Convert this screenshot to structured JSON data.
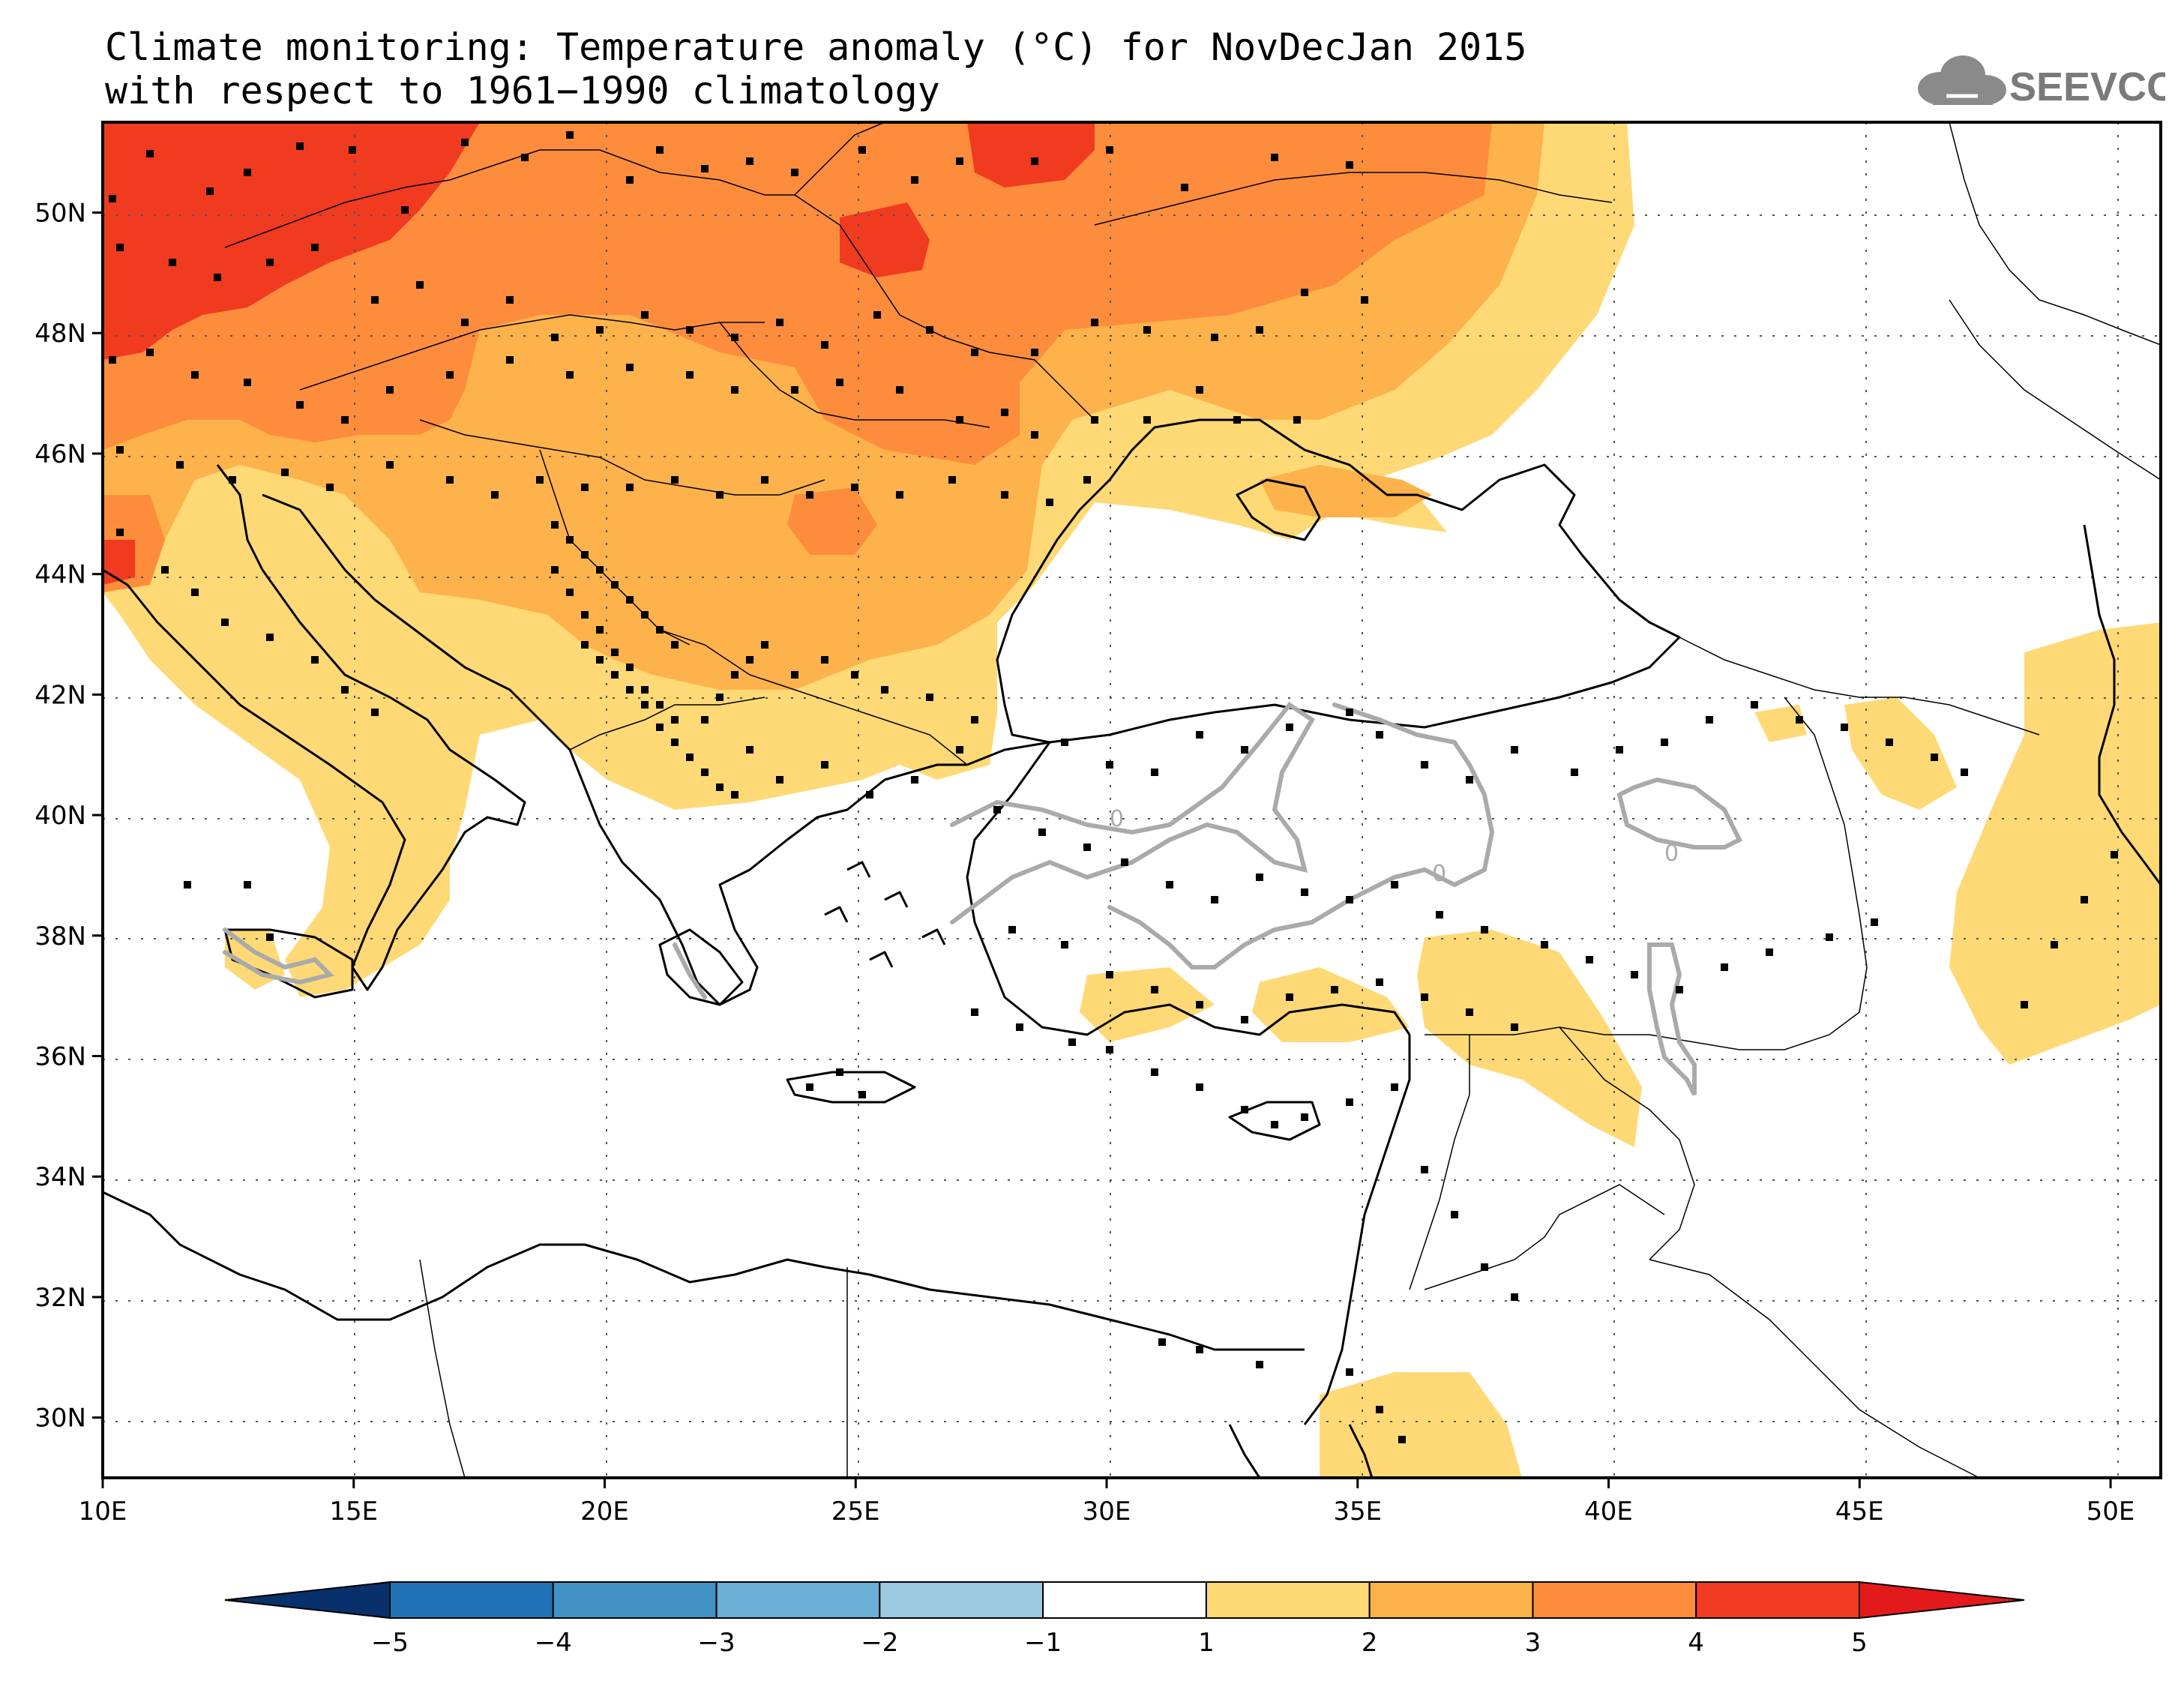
{
  "title_line1": "Climate monitoring: Temperature anomaly (°C) for NovDecJan 2015",
  "title_line2": "with respect to 1961−1990 climatology",
  "logo_text": "SEEVCCC",
  "map": {
    "lon_labels": [
      "10E",
      "15E",
      "20E",
      "25E",
      "30E",
      "35E",
      "40E",
      "45E",
      "50E"
    ],
    "lat_labels": [
      "30N",
      "32N",
      "34N",
      "36N",
      "38N",
      "40N",
      "42N",
      "44N",
      "46N",
      "48N",
      "50N"
    ],
    "contour_label": "0"
  },
  "colorbar": {
    "tick_labels": [
      "−5",
      "−4",
      "−3",
      "−2",
      "−1",
      "1",
      "2",
      "3",
      "4",
      "5"
    ],
    "colors": [
      "#08306b",
      "#2171b5",
      "#4292c6",
      "#6baed6",
      "#9ecae1",
      "#ffffff",
      "#fed976",
      "#feb24c",
      "#fd8d3c",
      "#f03b20",
      "#e31a1c"
    ]
  },
  "palette": {
    "a1": "#fed976",
    "a2": "#feb24c",
    "a3": "#fd8d3c",
    "a4": "#f03b20",
    "contour": "#aaaaaa",
    "station": "#000000"
  }
}
